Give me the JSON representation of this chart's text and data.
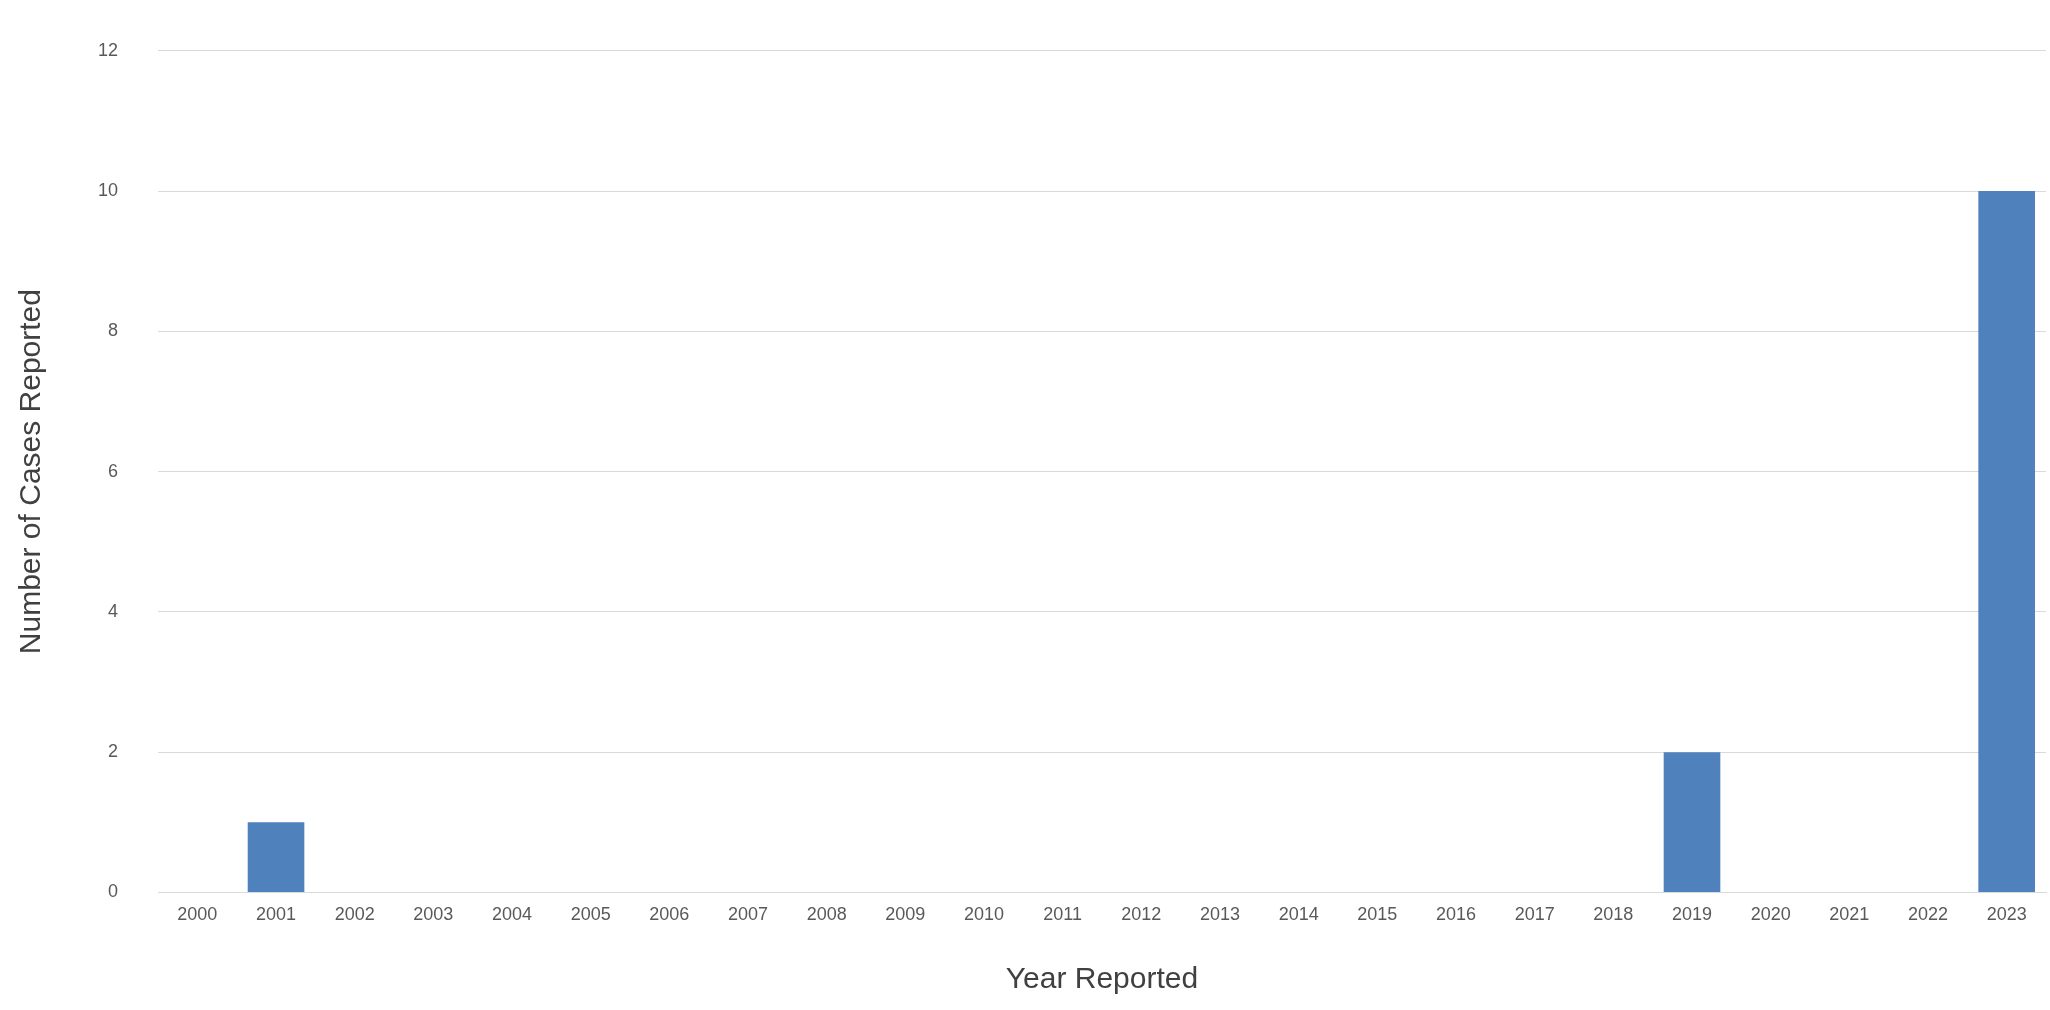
{
  "chart_data": {
    "type": "bar",
    "xlabel": "Year Reported",
    "ylabel": "Number of Cases Reported",
    "categories": [
      "2000",
      "2001",
      "2002",
      "2003",
      "2004",
      "2005",
      "2006",
      "2007",
      "2008",
      "2009",
      "2010",
      "2011",
      "2012",
      "2013",
      "2014",
      "2015",
      "2016",
      "2017",
      "2018",
      "2019",
      "2020",
      "2021",
      "2022",
      "2023"
    ],
    "values": [
      0,
      1,
      0,
      0,
      0,
      0,
      0,
      0,
      0,
      0,
      0,
      0,
      0,
      0,
      0,
      0,
      0,
      0,
      0,
      2,
      0,
      0,
      0,
      10
    ],
    "color": "#4f81bd",
    "ylim": [
      0,
      12
    ],
    "yticks": [
      0,
      2,
      4,
      6,
      8,
      10,
      12
    ],
    "grid": "y",
    "legend": false
  }
}
